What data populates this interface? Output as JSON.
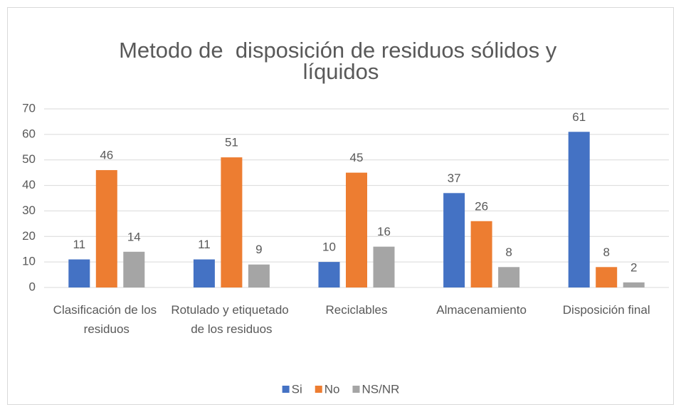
{
  "chart_data": {
    "type": "bar",
    "title": "Metodo de  disposición de residuos sólidos y líquidos",
    "categories": [
      "Clasificación de los residuos",
      "Rotulado y etiquetado de los residuos",
      "Reciclables",
      "Almacenamiento",
      "Disposición final"
    ],
    "series": [
      {
        "name": "Si",
        "color": "#4472c4",
        "values": [
          11,
          11,
          10,
          37,
          61
        ]
      },
      {
        "name": "No",
        "color": "#ed7d31",
        "values": [
          46,
          51,
          45,
          26,
          8
        ]
      },
      {
        "name": "NS/NR",
        "color": "#a5a5a5",
        "values": [
          14,
          9,
          16,
          8,
          2
        ]
      }
    ],
    "ylim": [
      0,
      70
    ],
    "yticks": [
      0,
      10,
      20,
      30,
      40,
      50,
      60,
      70
    ],
    "grid": true,
    "legend": "bottom"
  }
}
